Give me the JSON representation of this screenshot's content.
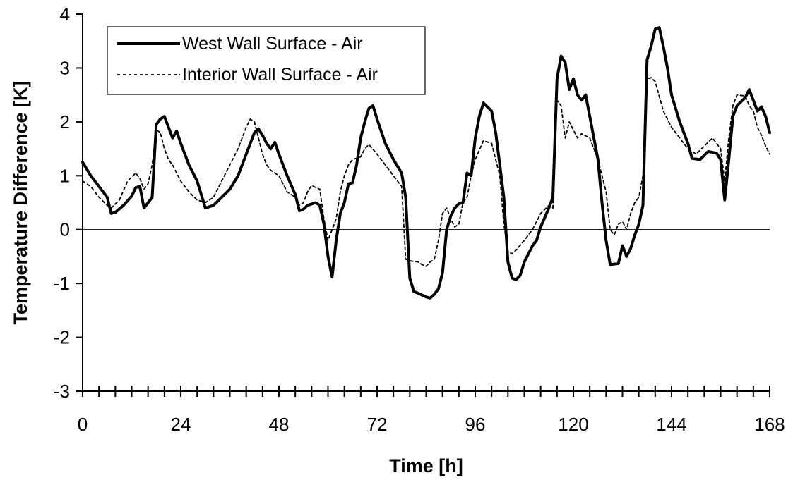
{
  "chart_data": {
    "type": "line",
    "title": "",
    "xlabel": "Time [h]",
    "ylabel": "Temperature Difference [K]",
    "xlim": [
      0,
      168
    ],
    "ylim": [
      -3,
      4
    ],
    "xticks": [
      "0",
      "24",
      "48",
      "72",
      "96",
      "120",
      "144",
      "168"
    ],
    "yticks": [
      "4",
      "3",
      "2",
      "1",
      "0",
      "-1",
      "-2",
      "-3"
    ],
    "grid": false,
    "zero_line": true,
    "legend_position": "top-left",
    "series": [
      {
        "name": "West Wall Surface - Air",
        "style": "solid",
        "color": "#000000",
        "points": [
          [
            0,
            1.25
          ],
          [
            2,
            1.0
          ],
          [
            4,
            0.8
          ],
          [
            6,
            0.6
          ],
          [
            7,
            0.3
          ],
          [
            8,
            0.32
          ],
          [
            10,
            0.45
          ],
          [
            12,
            0.62
          ],
          [
            13,
            0.78
          ],
          [
            14,
            0.8
          ],
          [
            15,
            0.4
          ],
          [
            16,
            0.5
          ],
          [
            17,
            0.6
          ],
          [
            18,
            1.95
          ],
          [
            19,
            2.05
          ],
          [
            20,
            2.1
          ],
          [
            21,
            1.9
          ],
          [
            22,
            1.7
          ],
          [
            23,
            1.83
          ],
          [
            24,
            1.6
          ],
          [
            26,
            1.2
          ],
          [
            28,
            0.9
          ],
          [
            30,
            0.4
          ],
          [
            32,
            0.45
          ],
          [
            36,
            0.75
          ],
          [
            38,
            1.0
          ],
          [
            40,
            1.4
          ],
          [
            42,
            1.8
          ],
          [
            43,
            1.87
          ],
          [
            44,
            1.75
          ],
          [
            45,
            1.6
          ],
          [
            46,
            1.5
          ],
          [
            47,
            1.62
          ],
          [
            48,
            1.4
          ],
          [
            50,
            1.0
          ],
          [
            52,
            0.65
          ],
          [
            53,
            0.35
          ],
          [
            54,
            0.38
          ],
          [
            55,
            0.45
          ],
          [
            57,
            0.5
          ],
          [
            58,
            0.45
          ],
          [
            59,
            0.1
          ],
          [
            60,
            -0.5
          ],
          [
            61,
            -0.88
          ],
          [
            62,
            -0.2
          ],
          [
            63,
            0.3
          ],
          [
            64,
            0.5
          ],
          [
            65,
            0.85
          ],
          [
            66,
            0.87
          ],
          [
            67,
            1.2
          ],
          [
            68,
            1.7
          ],
          [
            69,
            2.0
          ],
          [
            70,
            2.25
          ],
          [
            71,
            2.3
          ],
          [
            72,
            2.05
          ],
          [
            74,
            1.6
          ],
          [
            76,
            1.3
          ],
          [
            78,
            1.05
          ],
          [
            79,
            0.6
          ],
          [
            80,
            -0.9
          ],
          [
            81,
            -1.15
          ],
          [
            82,
            -1.18
          ],
          [
            84,
            -1.25
          ],
          [
            85,
            -1.27
          ],
          [
            86,
            -1.2
          ],
          [
            87,
            -1.1
          ],
          [
            88,
            -0.8
          ],
          [
            89,
            0.0
          ],
          [
            90,
            0.25
          ],
          [
            91,
            0.4
          ],
          [
            92,
            0.48
          ],
          [
            93,
            0.5
          ],
          [
            94,
            1.05
          ],
          [
            95,
            1.0
          ],
          [
            96,
            1.7
          ],
          [
            97,
            2.1
          ],
          [
            98,
            2.35
          ],
          [
            100,
            2.2
          ],
          [
            101,
            1.8
          ],
          [
            102,
            1.2
          ],
          [
            103,
            0.6
          ],
          [
            104,
            -0.6
          ],
          [
            105,
            -0.9
          ],
          [
            106,
            -0.93
          ],
          [
            107,
            -0.85
          ],
          [
            108,
            -0.6
          ],
          [
            110,
            -0.3
          ],
          [
            111,
            -0.2
          ],
          [
            112,
            0.05
          ],
          [
            114,
            0.4
          ],
          [
            115,
            0.6
          ],
          [
            116,
            2.8
          ],
          [
            117,
            3.22
          ],
          [
            118,
            3.1
          ],
          [
            119,
            2.6
          ],
          [
            120,
            2.8
          ],
          [
            121,
            2.5
          ],
          [
            122,
            2.4
          ],
          [
            123,
            2.5
          ],
          [
            124,
            2.1
          ],
          [
            126,
            1.3
          ],
          [
            127,
            0.5
          ],
          [
            128,
            -0.2
          ],
          [
            129,
            -0.65
          ],
          [
            130,
            -0.64
          ],
          [
            131,
            -0.63
          ],
          [
            132,
            -0.3
          ],
          [
            133,
            -0.5
          ],
          [
            134,
            -0.35
          ],
          [
            135,
            -0.1
          ],
          [
            136,
            0.1
          ],
          [
            137,
            0.45
          ],
          [
            138,
            3.15
          ],
          [
            139,
            3.4
          ],
          [
            140,
            3.72
          ],
          [
            141,
            3.75
          ],
          [
            142,
            3.4
          ],
          [
            143,
            3.0
          ],
          [
            144,
            2.5
          ],
          [
            146,
            2.0
          ],
          [
            147,
            1.8
          ],
          [
            148,
            1.6
          ],
          [
            149,
            1.32
          ],
          [
            151,
            1.3
          ],
          [
            152,
            1.38
          ],
          [
            153,
            1.45
          ],
          [
            155,
            1.42
          ],
          [
            156,
            1.3
          ],
          [
            157,
            0.55
          ],
          [
            158,
            1.3
          ],
          [
            159,
            2.1
          ],
          [
            160,
            2.3
          ],
          [
            162,
            2.45
          ],
          [
            163,
            2.6
          ],
          [
            164,
            2.4
          ],
          [
            165,
            2.2
          ],
          [
            166,
            2.28
          ],
          [
            167,
            2.1
          ],
          [
            168,
            1.8
          ]
        ]
      },
      {
        "name": "Interior Wall Surface - Air",
        "style": "dashed",
        "color": "#000000",
        "points": [
          [
            0,
            0.9
          ],
          [
            2,
            0.8
          ],
          [
            4,
            0.6
          ],
          [
            6,
            0.45
          ],
          [
            7,
            0.4
          ],
          [
            9,
            0.55
          ],
          [
            11,
            0.9
          ],
          [
            13,
            1.05
          ],
          [
            14,
            0.95
          ],
          [
            15,
            0.75
          ],
          [
            16,
            0.85
          ],
          [
            17,
            1.2
          ],
          [
            18,
            1.85
          ],
          [
            19,
            1.8
          ],
          [
            20,
            1.5
          ],
          [
            21,
            1.3
          ],
          [
            22,
            1.2
          ],
          [
            24,
            0.9
          ],
          [
            26,
            0.7
          ],
          [
            28,
            0.55
          ],
          [
            30,
            0.5
          ],
          [
            32,
            0.6
          ],
          [
            36,
            1.2
          ],
          [
            38,
            1.5
          ],
          [
            40,
            1.9
          ],
          [
            41,
            2.05
          ],
          [
            42,
            2.0
          ],
          [
            43,
            1.7
          ],
          [
            44,
            1.4
          ],
          [
            45,
            1.2
          ],
          [
            46,
            1.1
          ],
          [
            48,
            1.0
          ],
          [
            50,
            0.7
          ],
          [
            52,
            0.6
          ],
          [
            53,
            0.45
          ],
          [
            54,
            0.5
          ],
          [
            55,
            0.7
          ],
          [
            56,
            0.82
          ],
          [
            57,
            0.78
          ],
          [
            58,
            0.75
          ],
          [
            59,
            0.2
          ],
          [
            60,
            -0.2
          ],
          [
            61,
            0.0
          ],
          [
            62,
            0.2
          ],
          [
            63,
            0.7
          ],
          [
            64,
            1.0
          ],
          [
            65,
            1.2
          ],
          [
            66,
            1.3
          ],
          [
            68,
            1.35
          ],
          [
            69,
            1.5
          ],
          [
            70,
            1.58
          ],
          [
            72,
            1.4
          ],
          [
            74,
            1.2
          ],
          [
            76,
            1.0
          ],
          [
            78,
            0.8
          ],
          [
            79,
            -0.55
          ],
          [
            80,
            -0.58
          ],
          [
            82,
            -0.6
          ],
          [
            83,
            -0.65
          ],
          [
            84,
            -0.68
          ],
          [
            85,
            -0.6
          ],
          [
            86,
            -0.55
          ],
          [
            87,
            -0.2
          ],
          [
            88,
            0.3
          ],
          [
            89,
            0.4
          ],
          [
            90,
            0.2
          ],
          [
            91,
            0.05
          ],
          [
            92,
            0.1
          ],
          [
            93,
            0.5
          ],
          [
            94,
            0.6
          ],
          [
            95,
            1.0
          ],
          [
            96,
            1.3
          ],
          [
            98,
            1.65
          ],
          [
            100,
            1.6
          ],
          [
            102,
            1.0
          ],
          [
            103,
            0.1
          ],
          [
            104,
            -0.4
          ],
          [
            105,
            -0.45
          ],
          [
            106,
            -0.38
          ],
          [
            108,
            -0.2
          ],
          [
            110,
            0.0
          ],
          [
            112,
            0.3
          ],
          [
            114,
            0.45
          ],
          [
            115,
            0.4
          ],
          [
            116,
            2.4
          ],
          [
            117,
            2.3
          ],
          [
            118,
            1.7
          ],
          [
            119,
            2.0
          ],
          [
            120,
            1.85
          ],
          [
            121,
            1.7
          ],
          [
            122,
            1.78
          ],
          [
            124,
            1.7
          ],
          [
            126,
            1.3
          ],
          [
            128,
            0.7
          ],
          [
            129,
            0.0
          ],
          [
            130,
            -0.1
          ],
          [
            131,
            0.1
          ],
          [
            132,
            0.15
          ],
          [
            133,
            0.0
          ],
          [
            134,
            0.3
          ],
          [
            135,
            0.5
          ],
          [
            136,
            0.6
          ],
          [
            137,
            1.0
          ],
          [
            138,
            2.8
          ],
          [
            139,
            2.82
          ],
          [
            140,
            2.75
          ],
          [
            142,
            2.2
          ],
          [
            144,
            1.9
          ],
          [
            146,
            1.7
          ],
          [
            148,
            1.5
          ],
          [
            150,
            1.4
          ],
          [
            152,
            1.55
          ],
          [
            154,
            1.7
          ],
          [
            155,
            1.6
          ],
          [
            156,
            1.5
          ],
          [
            157,
            0.9
          ],
          [
            158,
            1.7
          ],
          [
            159,
            2.3
          ],
          [
            160,
            2.5
          ],
          [
            162,
            2.48
          ],
          [
            163,
            2.3
          ],
          [
            164,
            2.2
          ],
          [
            165,
            1.9
          ],
          [
            166,
            1.75
          ],
          [
            167,
            1.55
          ],
          [
            168,
            1.4
          ]
        ]
      }
    ]
  }
}
